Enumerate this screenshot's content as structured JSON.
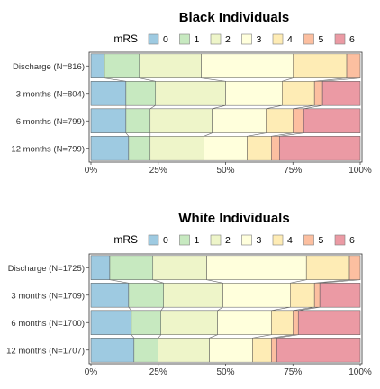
{
  "legend": {
    "title": "mRS",
    "levels": [
      "0",
      "1",
      "2",
      "3",
      "4",
      "5",
      "6"
    ],
    "colors": [
      "#9ecae1",
      "#c7e9c0",
      "#eef5c9",
      "#ffffdc",
      "#feecb5",
      "#fcbfa0",
      "#eb9aa4"
    ]
  },
  "chart_data": [
    {
      "type": "bar",
      "orientation": "horizontal-stacked-percent",
      "title": "Black Individuals",
      "categories": [
        "Discharge (N=816)",
        "3 months (N=804)",
        "6 months (N=799)",
        "12 months (N=799)"
      ],
      "xticks": [
        "0%",
        "25%",
        "50%",
        "75%",
        "100%"
      ],
      "xlim": [
        0,
        100
      ],
      "series": [
        {
          "name": "0",
          "values": [
            5,
            13,
            13,
            14
          ]
        },
        {
          "name": "1",
          "values": [
            13,
            11,
            9,
            8
          ]
        },
        {
          "name": "2",
          "values": [
            23,
            26,
            23,
            20
          ]
        },
        {
          "name": "3",
          "values": [
            34,
            21,
            20,
            16
          ]
        },
        {
          "name": "4",
          "values": [
            20,
            12,
            10,
            9
          ]
        },
        {
          "name": "5",
          "values": [
            5,
            3,
            4,
            3
          ]
        },
        {
          "name": "6",
          "values": [
            0,
            14,
            21,
            30
          ]
        }
      ]
    },
    {
      "type": "bar",
      "orientation": "horizontal-stacked-percent",
      "title": "White Individuals",
      "categories": [
        "Discharge (N=1725)",
        "3 months (N=1709)",
        "6 months (N=1700)",
        "12 months (N=1707)"
      ],
      "xticks": [
        "0%",
        "25%",
        "50%",
        "75%",
        "100%"
      ],
      "xlim": [
        0,
        100
      ],
      "series": [
        {
          "name": "0",
          "values": [
            7,
            14,
            15,
            16
          ]
        },
        {
          "name": "1",
          "values": [
            16,
            13,
            11,
            9
          ]
        },
        {
          "name": "2",
          "values": [
            20,
            22,
            21,
            19
          ]
        },
        {
          "name": "3",
          "values": [
            37,
            25,
            20,
            16
          ]
        },
        {
          "name": "4",
          "values": [
            16,
            9,
            8,
            7
          ]
        },
        {
          "name": "5",
          "values": [
            4,
            2,
            2,
            2
          ]
        },
        {
          "name": "6",
          "values": [
            0,
            15,
            23,
            31
          ]
        }
      ]
    }
  ]
}
